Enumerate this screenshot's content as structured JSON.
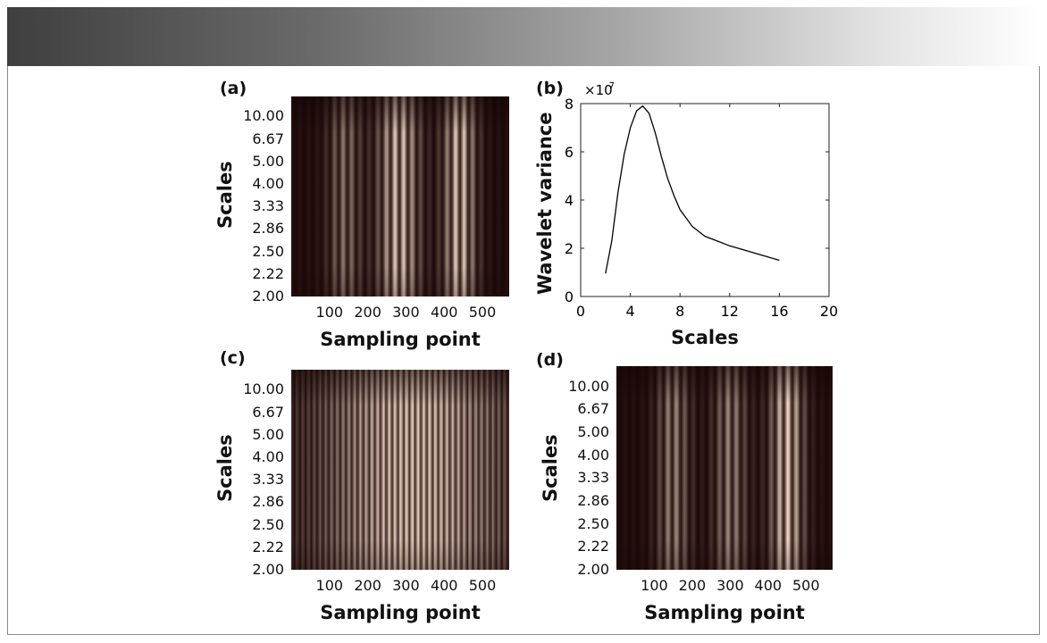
{
  "chart_data": [
    {
      "panel": "(a)",
      "type": "heatmap",
      "title": "",
      "xlabel": "Sampling point",
      "ylabel": "Scales",
      "xticks": [
        "100",
        "200",
        "300",
        "400",
        "500"
      ],
      "yticks": [
        "10.00",
        "6.67",
        "5.00",
        "4.00",
        "3.33",
        "2.86",
        "2.50",
        "2.22",
        "2.00"
      ],
      "xlim": [
        0,
        570
      ],
      "bright_regions": [
        [
          140,
          0.5
        ],
        [
          260,
          0.55
        ],
        [
          300,
          0.6
        ],
        [
          440,
          0.95
        ]
      ]
    },
    {
      "panel": "(b)",
      "type": "line",
      "title": "",
      "xlabel": "Scales",
      "ylabel": "Wavelet variance",
      "exponent_label": "×10",
      "exponent_power": "-7",
      "xlim": [
        0,
        20
      ],
      "ylim": [
        0,
        8
      ],
      "xticks": [
        "0",
        "4",
        "8",
        "12",
        "16",
        "20"
      ],
      "yticks": [
        "0",
        "2",
        "4",
        "6",
        "8"
      ],
      "x": [
        2.0,
        2.5,
        3.0,
        3.5,
        4.0,
        4.5,
        5.0,
        5.5,
        6.0,
        6.5,
        7.0,
        7.5,
        8.0,
        9.0,
        10.0,
        11.0,
        12.0,
        13.0,
        14.0,
        15.0,
        16.0
      ],
      "y": [
        0.95,
        2.3,
        4.3,
        5.9,
        7.0,
        7.7,
        7.9,
        7.6,
        6.8,
        5.8,
        4.9,
        4.2,
        3.6,
        2.9,
        2.5,
        2.3,
        2.1,
        1.95,
        1.8,
        1.65,
        1.5
      ]
    },
    {
      "panel": "(c)",
      "type": "heatmap",
      "title": "",
      "xlabel": "Sampling point",
      "ylabel": "Scales",
      "xticks": [
        "100",
        "200",
        "300",
        "400",
        "500"
      ],
      "yticks": [
        "10.00",
        "6.67",
        "5.00",
        "4.00",
        "3.33",
        "2.86",
        "2.50",
        "2.22",
        "2.00"
      ],
      "xlim": [
        0,
        570
      ],
      "bright_regions": [
        [
          320,
          1.0
        ]
      ]
    },
    {
      "panel": "(d)",
      "type": "heatmap",
      "title": "",
      "xlabel": "Sampling point",
      "ylabel": "Scales",
      "xticks": [
        "100",
        "200",
        "300",
        "400",
        "500"
      ],
      "yticks": [
        "10.00",
        "6.67",
        "5.00",
        "4.00",
        "3.33",
        "2.86",
        "2.50",
        "2.22",
        "2.00"
      ],
      "xlim": [
        0,
        570
      ],
      "bright_regions": [
        [
          150,
          0.6
        ],
        [
          300,
          0.6
        ],
        [
          450,
          1.0
        ]
      ]
    }
  ],
  "colors": {
    "dark": "#1a0606",
    "mid": "#b87070",
    "bright": "#f5e0c8",
    "line": "#000000",
    "header_dark": "#3f3f3f"
  }
}
